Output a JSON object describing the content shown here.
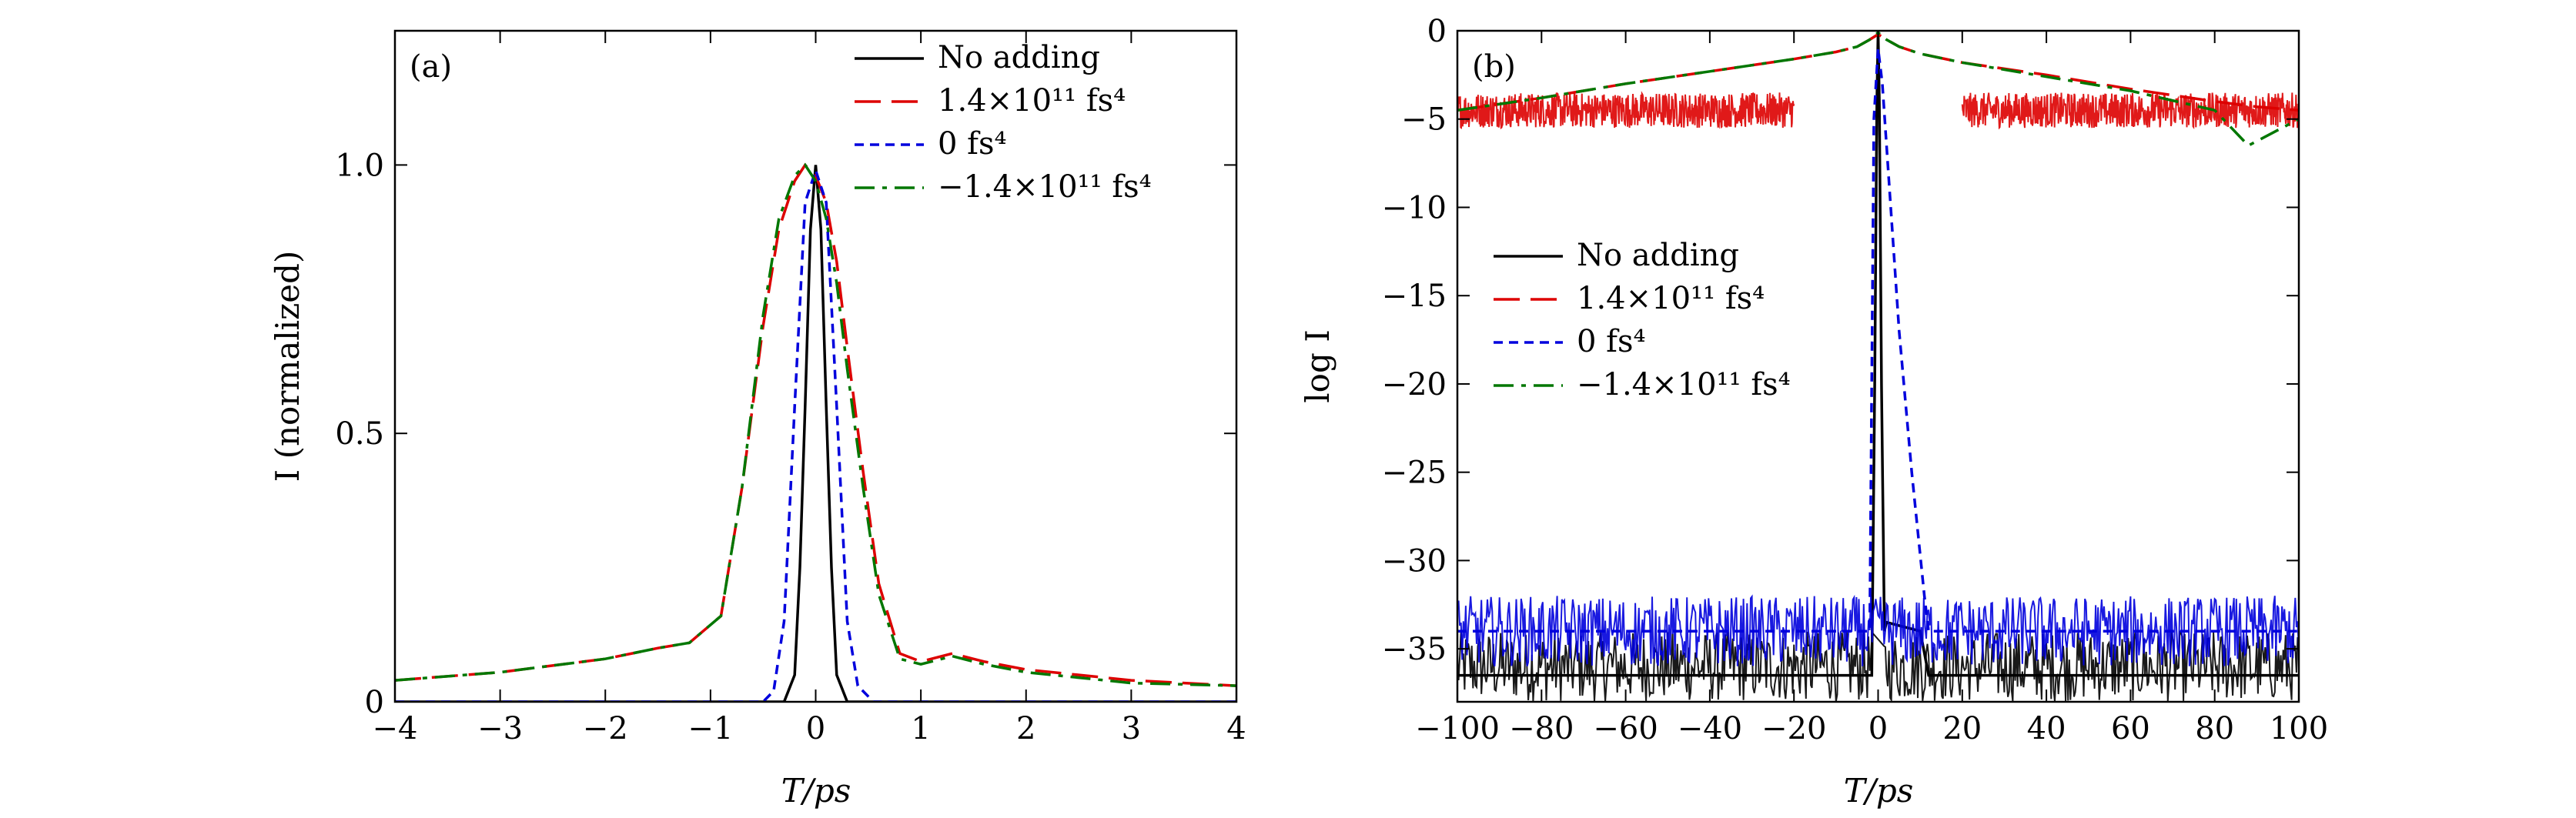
{
  "chart_data": [
    {
      "type": "line",
      "panel_label": "(a)",
      "xlabel": "T/ps",
      "ylabel": "I (normalized)",
      "xlim": [
        -4,
        4
      ],
      "ylim": [
        0,
        1.25
      ],
      "x_ticks": [
        "−4",
        "−3",
        "−2",
        "−1",
        "0",
        "1",
        "2",
        "3",
        "4"
      ],
      "y_ticks": [
        "0",
        "0.5",
        "1.0"
      ],
      "legend_position": "top-right",
      "series": [
        {
          "name": "No adding",
          "color": "#000000",
          "style": "solid",
          "x": [
            -4,
            -0.5,
            -0.3,
            -0.2,
            -0.15,
            -0.1,
            -0.05,
            0,
            0.05,
            0.1,
            0.15,
            0.2,
            0.3,
            0.5,
            4
          ],
          "y": [
            0,
            0,
            0.0,
            0.05,
            0.25,
            0.55,
            0.88,
            1.0,
            0.88,
            0.55,
            0.25,
            0.05,
            0.0,
            0,
            0
          ]
        },
        {
          "name": "1.4×10¹¹ fs⁴",
          "color": "#dd0000",
          "style": "long-dash",
          "x": [
            -4,
            -3,
            -2,
            -1.5,
            -1.2,
            -0.9,
            -0.7,
            -0.5,
            -0.35,
            -0.2,
            -0.1,
            0,
            0.1,
            0.2,
            0.3,
            0.45,
            0.6,
            0.8,
            1.0,
            1.3,
            1.6,
            2,
            3,
            4
          ],
          "y": [
            0.04,
            0.055,
            0.08,
            0.1,
            0.11,
            0.16,
            0.4,
            0.7,
            0.88,
            0.97,
            1.0,
            0.98,
            0.93,
            0.82,
            0.66,
            0.43,
            0.22,
            0.09,
            0.075,
            0.09,
            0.075,
            0.06,
            0.04,
            0.03
          ]
        },
        {
          "name": "0 fs⁴",
          "color": "#0000dd",
          "style": "short-dash",
          "x": [
            -4,
            -0.5,
            -0.4,
            -0.3,
            -0.2,
            -0.1,
            0,
            0.1,
            0.2,
            0.3,
            0.4,
            0.55,
            4
          ],
          "y": [
            0,
            0,
            0.02,
            0.15,
            0.55,
            0.93,
            0.99,
            0.93,
            0.55,
            0.15,
            0.03,
            0,
            0
          ]
        },
        {
          "name": "−1.4×10¹¹ fs⁴",
          "color": "#007700",
          "style": "dash-dot",
          "x": [
            -4,
            -3,
            -2,
            -1.5,
            -1.2,
            -0.9,
            -0.7,
            -0.5,
            -0.35,
            -0.2,
            -0.1,
            0,
            0.1,
            0.2,
            0.3,
            0.45,
            0.6,
            0.8,
            1.0,
            1.3,
            1.6,
            2,
            3,
            4
          ],
          "y": [
            0.04,
            0.055,
            0.08,
            0.1,
            0.11,
            0.16,
            0.4,
            0.72,
            0.9,
            0.98,
            1.0,
            0.97,
            0.9,
            0.78,
            0.62,
            0.4,
            0.2,
            0.08,
            0.07,
            0.085,
            0.07,
            0.055,
            0.035,
            0.03
          ]
        }
      ]
    },
    {
      "type": "line",
      "panel_label": "(b)",
      "xlabel": "T/ps",
      "ylabel": "log I",
      "xlim": [
        -100,
        100
      ],
      "ylim": [
        -38,
        0
      ],
      "x_ticks": [
        "−100",
        "−80",
        "−60",
        "−40",
        "−20",
        "0",
        "20",
        "40",
        "60",
        "80",
        "100"
      ],
      "y_ticks": [
        "0",
        "−5",
        "−10",
        "−15",
        "−20",
        "−25",
        "−30",
        "−35"
      ],
      "legend_position": "center-left",
      "series": [
        {
          "name": "No adding",
          "color": "#000000",
          "style": "solid",
          "noise_band": [
            -38,
            -34
          ],
          "x": [
            -100,
            -1.5,
            -0.8,
            -0.3,
            0,
            0.3,
            0.8,
            1.5,
            2,
            10,
            12,
            100
          ],
          "y": [
            -36.5,
            -36.5,
            -20,
            -4,
            0,
            -4,
            -20,
            -34,
            -33.5,
            -34,
            -36.5,
            -36.5
          ]
        },
        {
          "name": "1.4×10¹¹ fs⁴",
          "color": "#dd0000",
          "style": "long-dash",
          "noise_band_left": [
            -5.5,
            -3.5
          ],
          "noise_band_right": [
            -5.5,
            -3.5
          ],
          "x": [
            -100,
            -80,
            -60,
            -40,
            -20,
            -10,
            -5,
            -2,
            0,
            2,
            5,
            10,
            20,
            40,
            60,
            80,
            90,
            100
          ],
          "y": [
            -4.5,
            -3.8,
            -3.0,
            -2.3,
            -1.6,
            -1.2,
            -0.9,
            -0.5,
            -0.2,
            -0.5,
            -0.9,
            -1.3,
            -1.8,
            -2.5,
            -3.3,
            -4.0,
            -4.3,
            -4.5
          ]
        },
        {
          "name": "0 fs⁴",
          "color": "#0000dd",
          "style": "short-dash",
          "noise_band": [
            -36,
            -32
          ],
          "x": [
            -100,
            -2,
            -1,
            0,
            1,
            3,
            5,
            8,
            11,
            12,
            100
          ],
          "y": [
            -34,
            -34,
            -5,
            -1,
            -3,
            -10,
            -17,
            -25,
            -32,
            -34,
            -34
          ]
        },
        {
          "name": "−1.4×10¹¹ fs⁴",
          "color": "#007700",
          "style": "dash-dot",
          "x": [
            -100,
            -80,
            -60,
            -40,
            -20,
            -10,
            -5,
            -2,
            0,
            2,
            5,
            10,
            20,
            40,
            60,
            80,
            88,
            92,
            100
          ],
          "y": [
            -4.5,
            -3.8,
            -3.0,
            -2.3,
            -1.6,
            -1.2,
            -0.9,
            -0.5,
            -0.1,
            -0.5,
            -0.9,
            -1.3,
            -1.8,
            -2.6,
            -3.4,
            -4.5,
            -6.5,
            -6,
            -5
          ]
        }
      ]
    }
  ]
}
